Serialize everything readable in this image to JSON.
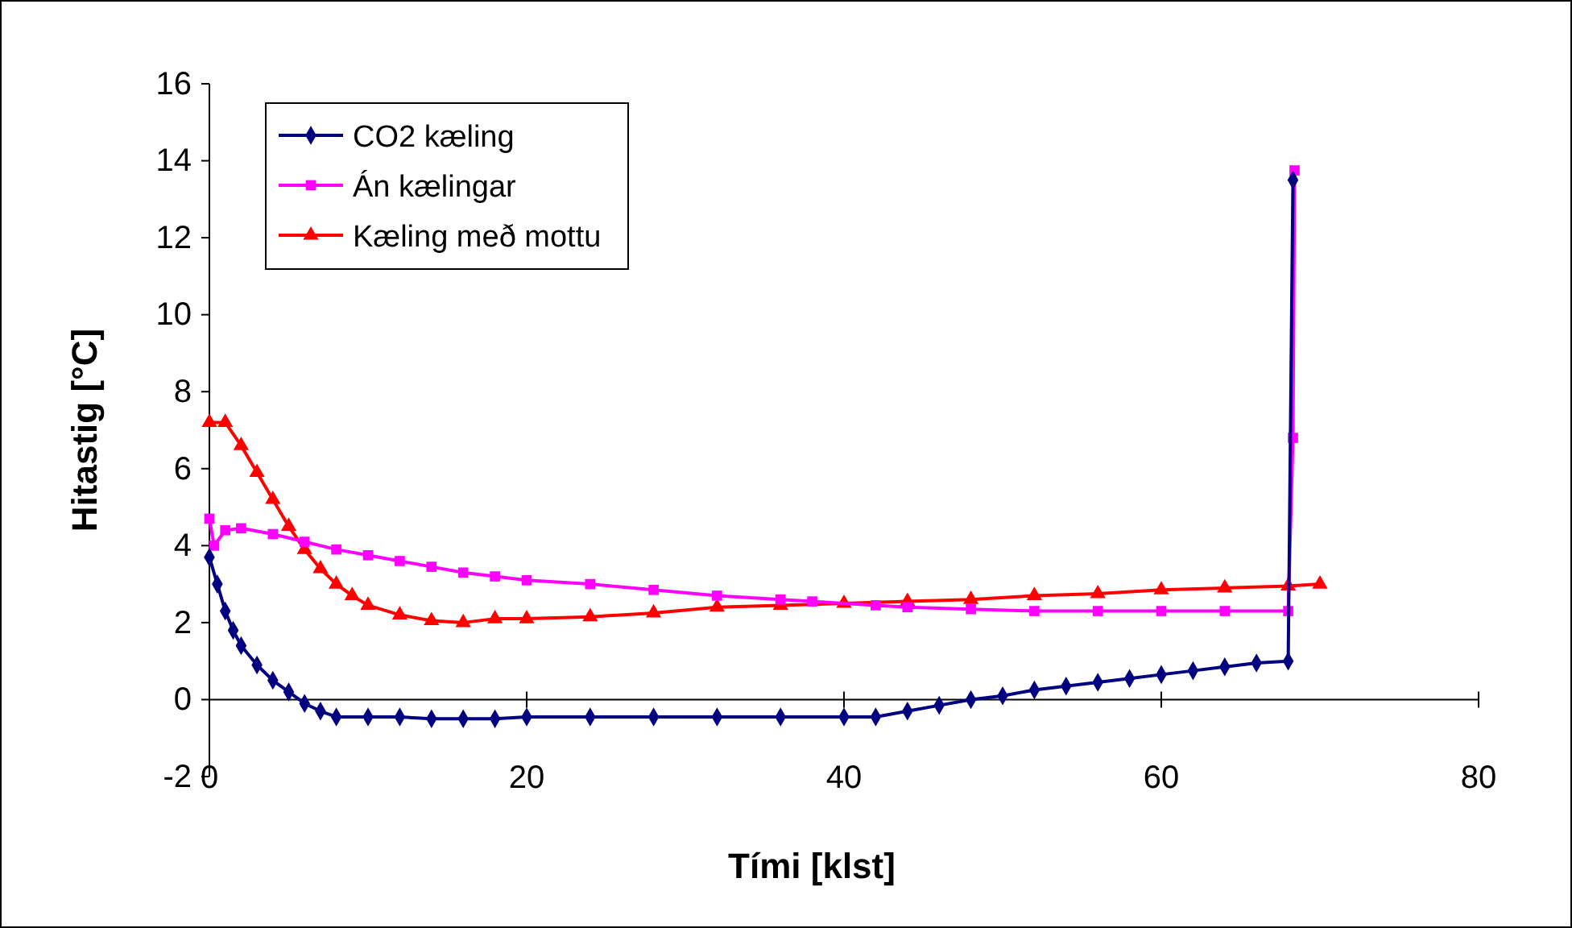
{
  "chart_data": {
    "type": "line",
    "xlabel": "Tími [klst]",
    "ylabel": "Hitastig [°C]",
    "xlim": [
      0,
      80
    ],
    "xticks": [
      0,
      20,
      40,
      60,
      80
    ],
    "ylim": [
      -2,
      16
    ],
    "yticks": [
      -2,
      0,
      2,
      4,
      6,
      8,
      10,
      12,
      14,
      16
    ],
    "grid": false,
    "legend": "top left",
    "series": [
      {
        "name": "CO2 kæling",
        "color": "#000080",
        "marker": "diamond",
        "x": [
          0,
          0.5,
          1,
          1.5,
          2,
          3,
          4,
          5,
          6,
          7,
          8,
          10,
          12,
          14,
          16,
          18,
          20,
          24,
          28,
          32,
          36,
          40,
          42,
          44,
          46,
          48,
          50,
          52,
          54,
          56,
          58,
          60,
          62,
          64,
          66,
          68,
          68.3
        ],
        "values": [
          3.7,
          3.0,
          2.3,
          1.8,
          1.4,
          0.9,
          0.5,
          0.2,
          -0.1,
          -0.3,
          -0.45,
          -0.45,
          -0.45,
          -0.5,
          -0.5,
          -0.5,
          -0.45,
          -0.45,
          -0.45,
          -0.45,
          -0.45,
          -0.45,
          -0.45,
          -0.3,
          -0.15,
          0,
          0.1,
          0.25,
          0.35,
          0.45,
          0.55,
          0.65,
          0.75,
          0.85,
          0.95,
          1.0,
          13.5
        ]
      },
      {
        "name": "Án kælingar",
        "color": "#ff00ff",
        "marker": "square",
        "x": [
          0,
          0.3,
          1,
          2,
          4,
          6,
          8,
          10,
          12,
          14,
          16,
          18,
          20,
          24,
          28,
          32,
          36,
          38,
          42,
          44,
          48,
          52,
          56,
          60,
          64,
          68,
          68.3,
          68.4
        ],
        "values": [
          4.7,
          4.0,
          4.4,
          4.45,
          4.3,
          4.1,
          3.9,
          3.75,
          3.6,
          3.45,
          3.3,
          3.2,
          3.1,
          3.0,
          2.85,
          2.7,
          2.6,
          2.55,
          2.45,
          2.4,
          2.35,
          2.3,
          2.3,
          2.3,
          2.3,
          2.3,
          6.8,
          13.75
        ]
      },
      {
        "name": "Kæling með mottu",
        "color": "#ff0000",
        "marker": "triangle",
        "x": [
          0,
          1,
          2,
          3,
          4,
          5,
          6,
          7,
          8,
          9,
          10,
          12,
          14,
          16,
          18,
          20,
          24,
          28,
          32,
          36,
          40,
          44,
          48,
          52,
          56,
          60,
          64,
          68,
          70
        ],
        "values": [
          7.2,
          7.2,
          6.6,
          5.9,
          5.2,
          4.5,
          3.9,
          3.4,
          3.0,
          2.7,
          2.45,
          2.2,
          2.05,
          2.0,
          2.1,
          2.1,
          2.15,
          2.25,
          2.4,
          2.45,
          2.5,
          2.55,
          2.6,
          2.7,
          2.75,
          2.85,
          2.9,
          2.95,
          3.0
        ]
      }
    ]
  }
}
